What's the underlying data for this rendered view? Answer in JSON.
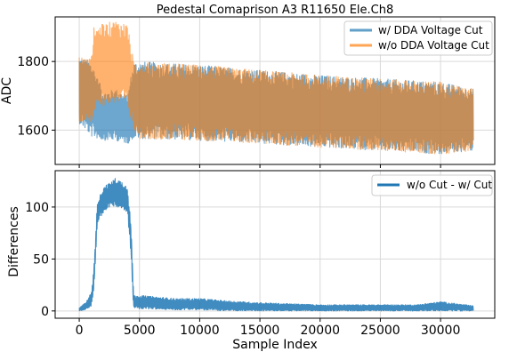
{
  "colors": {
    "series_cut": "#1f77b4",
    "series_nocut": "#ff7f0e",
    "series_diff": "#1f77b4",
    "axes": "#000000",
    "grid": "#d9d9d9",
    "legend_border": "#cccccc",
    "background": "#ffffff"
  },
  "chart_data": [
    {
      "type": "line",
      "title": "Pedestal Comaprison A3 R11650 Ele.Ch8",
      "xlabel": "",
      "ylabel": "ADC",
      "xlim": [
        -2000,
        34500
      ],
      "ylim": [
        1500,
        1930
      ],
      "xticks": [
        0,
        5000,
        10000,
        15000,
        20000,
        25000,
        30000
      ],
      "xticklabels": [
        "",
        "",
        "",
        "",
        "",
        "",
        ""
      ],
      "yticks": [
        1600,
        1800
      ],
      "yticklabels": [
        "1600",
        "1800"
      ],
      "grid": true,
      "legend_position": "top-right",
      "series": [
        {
          "name": "w/ DDA Voltage Cut",
          "color": "#1f77b4",
          "alpha": 0.65,
          "band": {
            "x": [
              0,
              1000,
              2000,
              3000,
              4000,
              4500,
              5000,
              10000,
              15000,
              20000,
              25000,
              30000,
              32700
            ],
            "upper": [
              1815,
              1800,
              1710,
              1720,
              1700,
              1800,
              1800,
              1790,
              1775,
              1760,
              1750,
              1740,
              1720
            ],
            "lower": [
              1620,
              1580,
              1570,
              1570,
              1560,
              1575,
              1575,
              1570,
              1560,
              1550,
              1540,
              1530,
              1540
            ]
          }
        },
        {
          "name": "w/o DDA Voltage Cut",
          "color": "#ff7f0e",
          "alpha": 0.6,
          "band": {
            "x": [
              0,
              1000,
              1200,
              2000,
              3000,
              4000,
              4500,
              5000,
              10000,
              15000,
              20000,
              25000,
              30000,
              32700
            ],
            "upper": [
              1815,
              1810,
              1900,
              1910,
              1920,
              1910,
              1800,
              1800,
              1790,
              1775,
              1760,
              1750,
              1740,
              1720
            ],
            "lower": [
              1620,
              1620,
              1650,
              1670,
              1680,
              1670,
              1600,
              1575,
              1570,
              1560,
              1550,
              1540,
              1530,
              1540
            ]
          }
        }
      ]
    },
    {
      "type": "line",
      "title": "",
      "xlabel": "Sample Index",
      "ylabel": "Differences",
      "xlim": [
        -2000,
        34500
      ],
      "ylim": [
        -7,
        135
      ],
      "xticks": [
        0,
        5000,
        10000,
        15000,
        20000,
        25000,
        30000
      ],
      "xticklabels": [
        "0",
        "5000",
        "10000",
        "15000",
        "20000",
        "25000",
        "30000"
      ],
      "yticks": [
        0,
        50,
        100
      ],
      "yticklabels": [
        "0",
        "50",
        "100"
      ],
      "grid": true,
      "legend_position": "top-right",
      "series": [
        {
          "name": "w/o Cut - w/ Cut",
          "color": "#1f77b4",
          "alpha": 0.85,
          "band": {
            "x": [
              0,
              500,
              1000,
              1200,
              1500,
              2000,
              2500,
              3000,
              3500,
              4000,
              4300,
              4500,
              5000,
              8000,
              10000,
              12000,
              15000,
              20000,
              25000,
              28000,
              30000,
              32700
            ],
            "upper": [
              3,
              8,
              18,
              40,
              105,
              120,
              123,
              128,
              125,
              120,
              80,
              15,
              15,
              12,
              12,
              10,
              8,
              6,
              6,
              6,
              9,
              5
            ],
            "lower": [
              0,
              1,
              5,
              20,
              85,
              95,
              100,
              100,
              98,
              95,
              50,
              3,
              2,
              1,
              1,
              0,
              0,
              0,
              0,
              0,
              0,
              0
            ]
          }
        }
      ]
    }
  ]
}
